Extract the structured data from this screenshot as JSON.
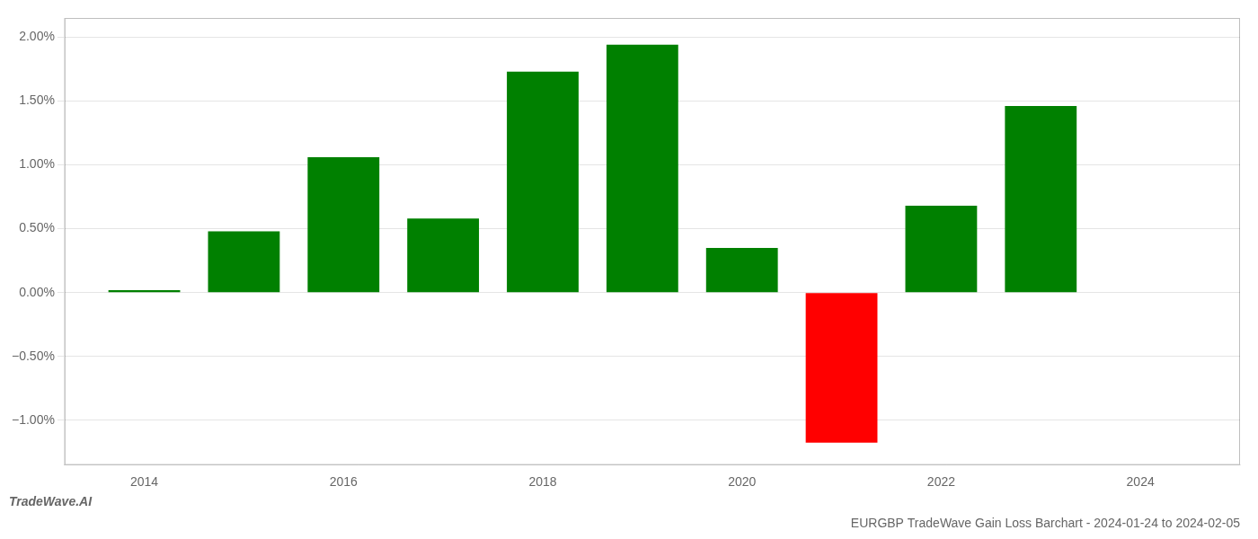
{
  "chart_data": {
    "type": "bar",
    "title": "EURGBP TradeWave Gain Loss Barchart - 2024-01-24 to 2024-02-05",
    "annotations": [
      "TradeWave.AI"
    ],
    "x": [
      2014,
      2015,
      2016,
      2017,
      2018,
      2019,
      2020,
      2021,
      2022,
      2023
    ],
    "values": [
      0.00018,
      0.0048,
      0.0106,
      0.0058,
      0.0173,
      0.0194,
      0.0035,
      -0.01175,
      0.0068,
      0.0146
    ],
    "colors": [
      "#008000",
      "#008000",
      "#008000",
      "#008000",
      "#008000",
      "#008000",
      "#008000",
      "#ff0000",
      "#008000",
      "#008000"
    ],
    "xlim": [
      2013.2,
      2025.0
    ],
    "xticks": [
      2014,
      2016,
      2018,
      2020,
      2022,
      2024
    ],
    "ylim": [
      -0.0135,
      0.0215
    ],
    "yticks": [
      {
        "value": -0.01,
        "label": "−1.00%"
      },
      {
        "value": -0.005,
        "label": "−0.50%"
      },
      {
        "value": 0.0,
        "label": "0.00%"
      },
      {
        "value": 0.005,
        "label": "0.50%"
      },
      {
        "value": 0.01,
        "label": "1.00%"
      },
      {
        "value": 0.015,
        "label": "1.50%"
      },
      {
        "value": 0.02,
        "label": "2.00%"
      }
    ],
    "grid": "y"
  }
}
